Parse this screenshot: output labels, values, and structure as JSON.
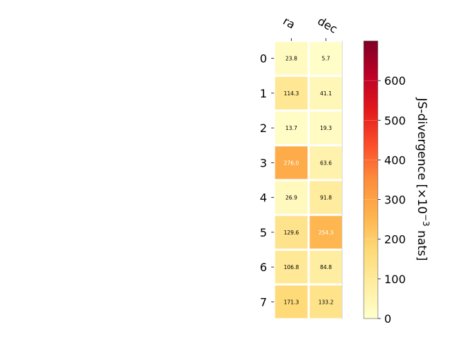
{
  "chart_data": {
    "type": "heatmap",
    "columns": [
      "ra",
      "dec"
    ],
    "rows": [
      "0",
      "1",
      "2",
      "3",
      "4",
      "5",
      "6",
      "7"
    ],
    "values": [
      [
        23.8,
        5.7
      ],
      [
        114.3,
        41.1
      ],
      [
        13.7,
        19.3
      ],
      [
        276.0,
        63.6
      ],
      [
        26.9,
        91.8
      ],
      [
        129.6,
        254.3
      ],
      [
        106.8,
        84.8
      ],
      [
        171.3,
        133.2
      ]
    ],
    "value_labels": [
      [
        "23.8",
        "5.7"
      ],
      [
        "114.3",
        "41.1"
      ],
      [
        "13.7",
        "19.3"
      ],
      [
        "276.0",
        "63.6"
      ],
      [
        "26.9",
        "91.8"
      ],
      [
        "129.6",
        "254.3"
      ],
      [
        "106.8",
        "84.8"
      ],
      [
        "171.3",
        "133.2"
      ]
    ],
    "colorbar": {
      "label_main": "JS-divergence [×10",
      "label_exp": "−3",
      "label_tail": " nats]",
      "range": [
        0,
        700
      ],
      "ticks": [
        0,
        100,
        200,
        300,
        400,
        500,
        600
      ],
      "tick_labels": [
        "0",
        "100",
        "200",
        "300",
        "400",
        "500",
        "600"
      ],
      "colormap": "YlOrRd"
    }
  }
}
